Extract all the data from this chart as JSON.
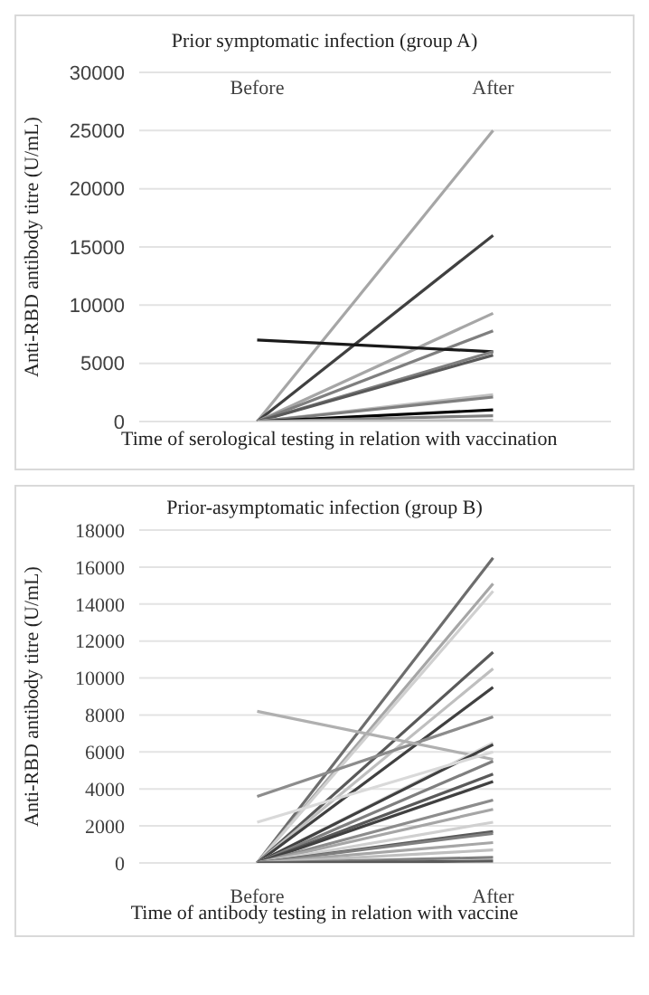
{
  "chart_data": [
    {
      "type": "line",
      "title": "Prior symptomatic infection (group A)",
      "xlabel": "Time of serological testing in relation with vaccination",
      "ylabel": "Anti-RBD antibody titre (U/mL)",
      "categories": [
        "Before",
        "After"
      ],
      "ylim": [
        0,
        30000
      ],
      "yticks": [
        0,
        5000,
        10000,
        15000,
        20000,
        25000,
        30000
      ],
      "grid": "y",
      "marker": "none",
      "series": [
        {
          "color": "#a6a6a6",
          "values": [
            0,
            25000
          ]
        },
        {
          "color": "#404040",
          "values": [
            0,
            16000
          ]
        },
        {
          "color": "#a6a6a6",
          "values": [
            0,
            9300
          ]
        },
        {
          "color": "#7f7f7f",
          "values": [
            0,
            7800
          ]
        },
        {
          "color": "#1a1a1a",
          "values": [
            7000,
            6000
          ]
        },
        {
          "color": "#7f7f7f",
          "values": [
            0,
            6000
          ]
        },
        {
          "color": "#595959",
          "values": [
            0,
            5700
          ]
        },
        {
          "color": "#bfbfbf",
          "values": [
            0,
            2300
          ]
        },
        {
          "color": "#7f7f7f",
          "values": [
            0,
            2100
          ]
        },
        {
          "color": "#000000",
          "values": [
            0,
            1000
          ]
        },
        {
          "color": "#808080",
          "values": [
            0,
            500
          ]
        },
        {
          "color": "#bfbfbf",
          "values": [
            0,
            100
          ]
        }
      ]
    },
    {
      "type": "line",
      "title": "Prior-asymptomatic infection (group B)",
      "xlabel": "Time of antibody testing in relation with vaccine",
      "ylabel": "Anti-RBD antibody titre (U/mL)",
      "categories": [
        "Before",
        "After"
      ],
      "ylim": [
        0,
        18000
      ],
      "yticks": [
        0,
        2000,
        4000,
        6000,
        8000,
        10000,
        12000,
        14000,
        16000,
        18000
      ],
      "grid": "y",
      "marker": "none",
      "series": [
        {
          "color": "#6d6d6d",
          "values": [
            0,
            16500
          ]
        },
        {
          "color": "#a6a6a6",
          "values": [
            0,
            15100
          ]
        },
        {
          "color": "#d0d0d0",
          "values": [
            0,
            14700
          ]
        },
        {
          "color": "#595959",
          "values": [
            0,
            11400
          ]
        },
        {
          "color": "#bfbfbf",
          "values": [
            0,
            10500
          ]
        },
        {
          "color": "#404040",
          "values": [
            0,
            9500
          ]
        },
        {
          "color": "#8c8c8c",
          "values": [
            3600,
            7900
          ]
        },
        {
          "color": "#b0b0b0",
          "values": [
            8200,
            5600
          ]
        },
        {
          "color": "#d9d9d9",
          "values": [
            0,
            6500
          ]
        },
        {
          "color": "#404040",
          "values": [
            0,
            6400
          ]
        },
        {
          "color": "#d9d9d9",
          "values": [
            2200,
            6000
          ]
        },
        {
          "color": "#7f7f7f",
          "values": [
            0,
            5500
          ]
        },
        {
          "color": "#595959",
          "values": [
            0,
            4800
          ]
        },
        {
          "color": "#404040",
          "values": [
            0,
            4400
          ]
        },
        {
          "color": "#8c8c8c",
          "values": [
            0,
            3400
          ]
        },
        {
          "color": "#a6a6a6",
          "values": [
            0,
            2900
          ]
        },
        {
          "color": "#d0d0d0",
          "values": [
            0,
            2200
          ]
        },
        {
          "color": "#595959",
          "values": [
            0,
            1700
          ]
        },
        {
          "color": "#7f7f7f",
          "values": [
            0,
            1600
          ]
        },
        {
          "color": "#a6a6a6",
          "values": [
            0,
            1100
          ]
        },
        {
          "color": "#bfbfbf",
          "values": [
            0,
            700
          ]
        },
        {
          "color": "#7f7f7f",
          "values": [
            0,
            300
          ]
        },
        {
          "color": "#595959",
          "values": [
            0,
            100
          ]
        }
      ]
    }
  ]
}
